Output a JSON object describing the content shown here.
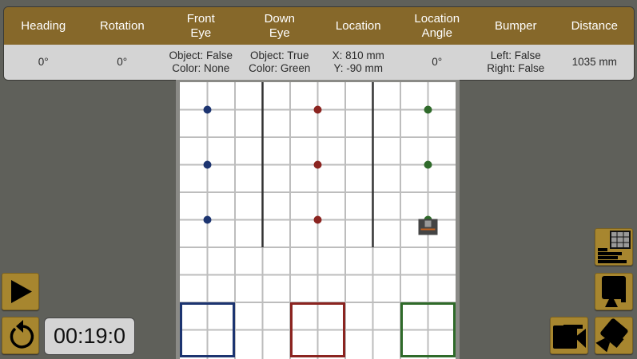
{
  "headers": [
    "Heading",
    "Rotation",
    "Front\nEye",
    "Down\nEye",
    "Location",
    "Location\nAngle",
    "Bumper",
    "Distance"
  ],
  "values": [
    "0°",
    "0°",
    "Object: False\nColor: None",
    "Object: True\nColor: Green",
    "X: 810 mm\nY: -90 mm",
    "0°",
    "Left: False\nRight: False",
    "1035 mm"
  ],
  "timer": "00:19:0",
  "colors": {
    "blue": "#1c3470",
    "red": "#8b2420",
    "green": "#2f6a2a",
    "button": "#a7862f",
    "header": "#86682a"
  },
  "icons": [
    "play-icon",
    "reset-icon",
    "sensor-table-icon",
    "top-camera-icon",
    "follow-camera-icon",
    "angled-camera-icon"
  ]
}
